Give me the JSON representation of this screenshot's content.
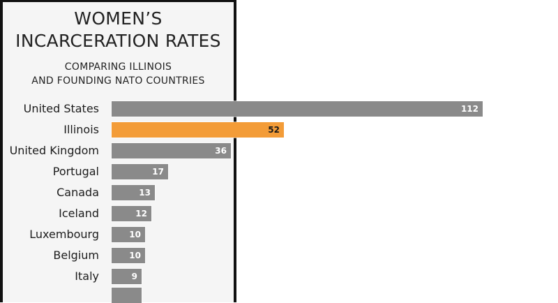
{
  "chart": {
    "title_line1": "WOMEN’S",
    "title_line2": "INCARCERATION RATES",
    "subtitle_line1": "COMPARING ILLINOIS",
    "subtitle_line2": "AND FOUNDING NATO COUNTRIES",
    "colors": {
      "default_bar": "#8a8a8a",
      "highlight_bar": "#f39c38",
      "panel_bg": "#f5f5f5",
      "border": "#111111"
    }
  },
  "rows": [
    {
      "label": "United States",
      "value": "112",
      "highlight": false
    },
    {
      "label": "Illinois",
      "value": "52",
      "highlight": true
    },
    {
      "label": "United Kingdom",
      "value": "36",
      "highlight": false
    },
    {
      "label": "Portugal",
      "value": "17",
      "highlight": false
    },
    {
      "label": "Canada",
      "value": "13",
      "highlight": false
    },
    {
      "label": "Iceland",
      "value": "12",
      "highlight": false
    },
    {
      "label": "Luxembourg",
      "value": "10",
      "highlight": false
    },
    {
      "label": "Belgium",
      "value": "10",
      "highlight": false
    },
    {
      "label": "Italy",
      "value": "9",
      "highlight": false
    }
  ],
  "chart_data": {
    "type": "bar",
    "orientation": "horizontal",
    "title": "WOMEN’S INCARCERATION RATES",
    "subtitle": "COMPARING ILLINOIS AND FOUNDING NATO COUNTRIES",
    "categories": [
      "United States",
      "Illinois",
      "United Kingdom",
      "Portugal",
      "Canada",
      "Iceland",
      "Luxembourg",
      "Belgium",
      "Italy"
    ],
    "values": [
      112,
      52,
      36,
      17,
      13,
      12,
      10,
      10,
      9
    ],
    "highlighted": [
      "Illinois"
    ],
    "xlabel": "",
    "ylabel": "",
    "grid": false,
    "legend": "none",
    "note": "Additional bar partially visible below Italy (cut off)"
  }
}
